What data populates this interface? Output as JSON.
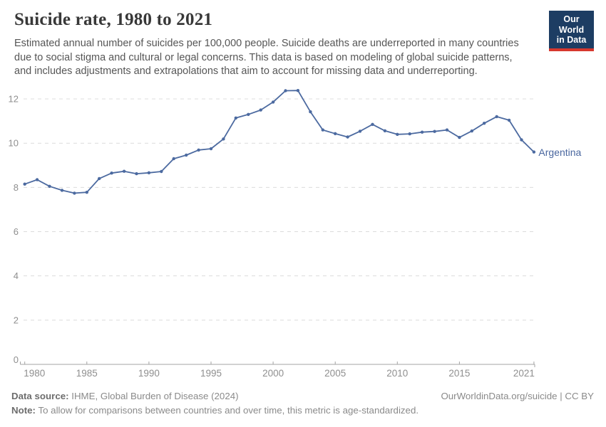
{
  "header": {
    "title": "Suicide rate, 1980 to 2021",
    "subtitle_lines": [
      "Estimated annual number of suicides per 100,000 people. Suicide deaths are underreported in many countries",
      "due to social stigma and cultural or legal concerns. This data is based on modeling of global suicide patterns,",
      "and includes adjustments and extrapolations that aim to account for missing data and underreporting."
    ]
  },
  "logo": {
    "line1": "Our World",
    "line2": "in Data"
  },
  "colors": {
    "line": "#4c6aa0",
    "series_label": "#4a679f",
    "grid": "#dcdcdc",
    "axis": "#a3a3a3",
    "tick_label": "#8f8f8f",
    "logo_bg": "#1d3d63",
    "logo_bar": "#d7382e"
  },
  "chart_data": {
    "type": "line",
    "title": "Suicide rate, 1980 to 2021",
    "xlabel": "",
    "ylabel": "",
    "x_ticks": [
      1980,
      1985,
      1990,
      1995,
      2000,
      2005,
      2010,
      2015,
      2021
    ],
    "y_ticks": [
      0,
      2,
      4,
      6,
      8,
      10,
      12
    ],
    "xlim": [
      1980,
      2021
    ],
    "ylim": [
      0,
      12.7
    ],
    "grid": "horizontal-dashed",
    "legend": "direct-line-label",
    "series": [
      {
        "name": "Argentina",
        "years": [
          1980,
          1981,
          1982,
          1983,
          1984,
          1985,
          1986,
          1987,
          1988,
          1989,
          1990,
          1991,
          1992,
          1993,
          1994,
          1995,
          1996,
          1997,
          1998,
          1999,
          2000,
          2001,
          2002,
          2003,
          2004,
          2005,
          2006,
          2007,
          2008,
          2009,
          2010,
          2011,
          2012,
          2013,
          2014,
          2015,
          2016,
          2017,
          2018,
          2019,
          2020,
          2021
        ],
        "values": [
          8.15,
          8.35,
          8.05,
          7.87,
          7.74,
          7.78,
          8.4,
          8.65,
          8.73,
          8.62,
          8.66,
          8.72,
          9.3,
          9.46,
          9.69,
          9.75,
          10.19,
          11.14,
          11.3,
          11.5,
          11.86,
          12.37,
          12.38,
          11.42,
          10.6,
          10.43,
          10.28,
          10.54,
          10.85,
          10.56,
          10.4,
          10.42,
          10.5,
          10.53,
          10.6,
          10.26,
          10.55,
          10.9,
          11.2,
          11.04,
          10.15,
          9.6
        ]
      }
    ]
  },
  "footer": {
    "source_label": "Data source:",
    "source_text": " IHME, Global Burden of Disease (2024)",
    "note_label": "Note:",
    "note_text": " To allow for comparisons between countries and over time, this metric is age-standardized.",
    "license": "OurWorldinData.org/suicide | CC BY"
  }
}
